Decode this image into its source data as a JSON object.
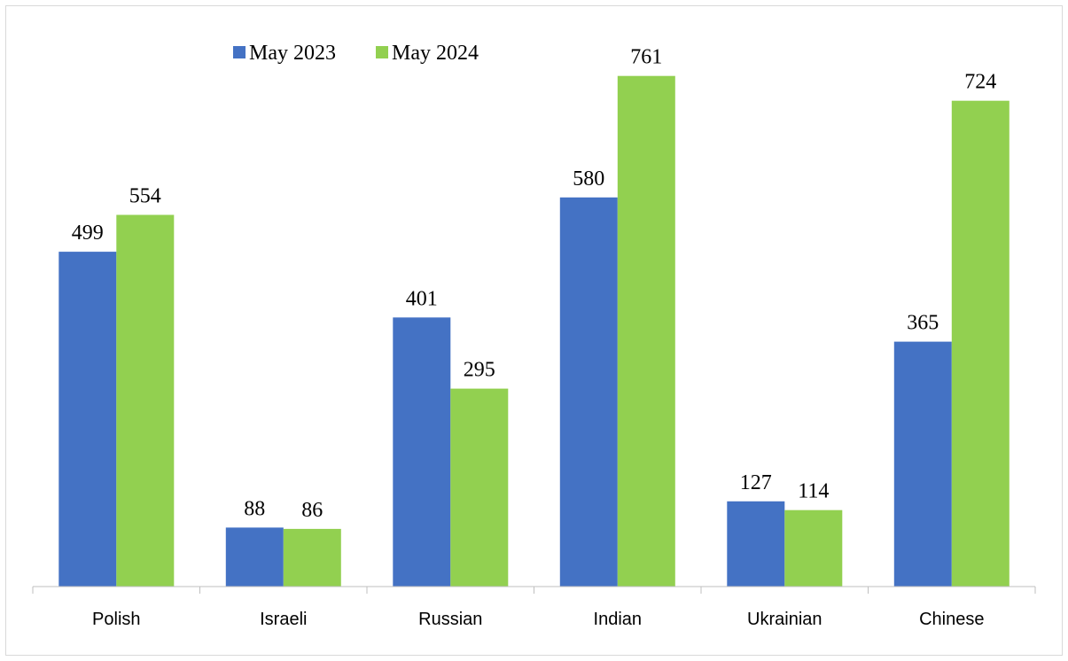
{
  "chart_data": {
    "type": "bar",
    "categories": [
      "Polish",
      "Israeli",
      "Russian",
      "Indian",
      "Ukrainian",
      "Chinese"
    ],
    "series": [
      {
        "name": "May 2023",
        "values": [
          499,
          88,
          401,
          580,
          127,
          365
        ],
        "color": "#4472C4"
      },
      {
        "name": "May 2024",
        "values": [
          554,
          86,
          295,
          761,
          114,
          724
        ],
        "color": "#92D050"
      }
    ],
    "ylim": [
      0,
      800
    ],
    "grid": false,
    "legend_position": "top-left",
    "data_labels": true,
    "title": "",
    "xlabel": "",
    "ylabel": ""
  }
}
